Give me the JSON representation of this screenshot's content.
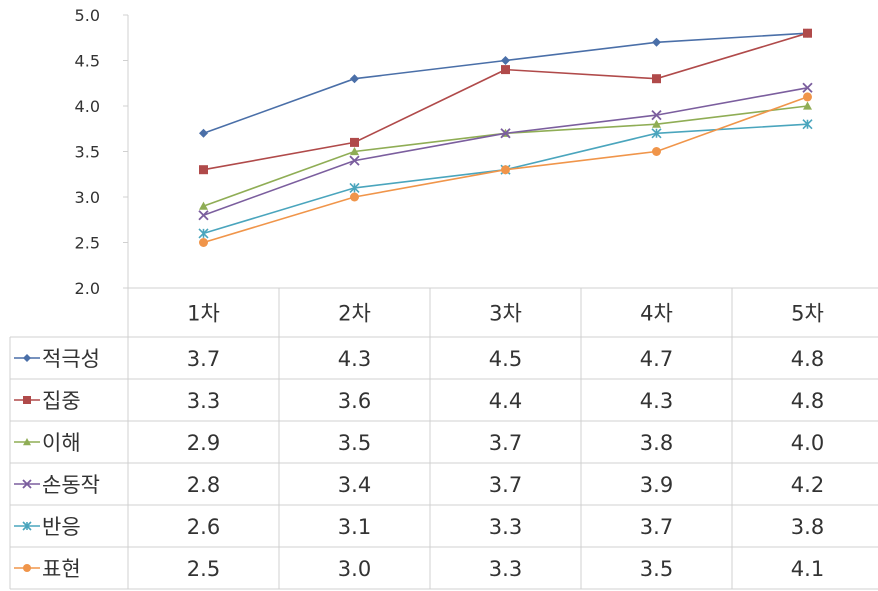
{
  "chart_data": {
    "type": "line",
    "title": "",
    "xlabel": "",
    "ylabel": "",
    "ylim": [
      2.0,
      5.0
    ],
    "yticks": [
      "2.0",
      "2.5",
      "3.0",
      "3.5",
      "4.0",
      "4.5",
      "5.0"
    ],
    "categories": [
      "1차",
      "2차",
      "3차",
      "4차",
      "5차"
    ],
    "grid": false,
    "legend_placement": "data-table-rows",
    "series": [
      {
        "name": "적극성",
        "color": "#4a6fa8",
        "marker": "diamond",
        "values": [
          3.7,
          4.3,
          4.5,
          4.7,
          4.8
        ],
        "labels": [
          "3.7",
          "4.3",
          "4.5",
          "4.7",
          "4.8"
        ]
      },
      {
        "name": "집중",
        "color": "#b04a4a",
        "marker": "square",
        "values": [
          3.3,
          3.6,
          4.4,
          4.3,
          4.8
        ],
        "labels": [
          "3.3",
          "3.6",
          "4.4",
          "4.3",
          "4.8"
        ]
      },
      {
        "name": "이해",
        "color": "#8fad55",
        "marker": "triangle",
        "values": [
          2.9,
          3.5,
          3.7,
          3.8,
          4.0
        ],
        "labels": [
          "2.9",
          "3.5",
          "3.7",
          "3.8",
          "4.0"
        ]
      },
      {
        "name": "손동작",
        "color": "#7b5e9e",
        "marker": "x",
        "values": [
          2.8,
          3.4,
          3.7,
          3.9,
          4.2
        ],
        "labels": [
          "2.8",
          "3.4",
          "3.7",
          "3.9",
          "4.2"
        ]
      },
      {
        "name": "반응",
        "color": "#4aa5bd",
        "marker": "star",
        "values": [
          2.6,
          3.1,
          3.3,
          3.7,
          3.8
        ],
        "labels": [
          "2.6",
          "3.1",
          "3.3",
          "3.7",
          "3.8"
        ]
      },
      {
        "name": "표현",
        "color": "#f0954a",
        "marker": "circle",
        "values": [
          2.5,
          3.0,
          3.3,
          3.5,
          4.1
        ],
        "labels": [
          "2.5",
          "3.0",
          "3.3",
          "3.5",
          "4.1"
        ]
      }
    ]
  }
}
